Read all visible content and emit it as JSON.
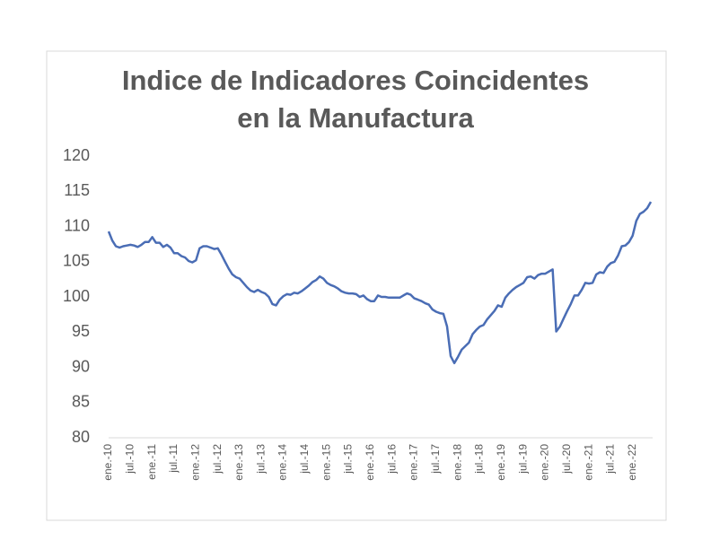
{
  "chart_data": {
    "type": "line",
    "title": [
      "Indice de Indicadores Coincidentes",
      "en la Manufactura"
    ],
    "categories": [
      "ene.-10",
      null,
      null,
      null,
      null,
      null,
      "jul.-10",
      null,
      null,
      null,
      null,
      null,
      "ene.-11",
      null,
      null,
      null,
      null,
      null,
      "jul.-11",
      null,
      null,
      null,
      null,
      null,
      "ene.-12",
      null,
      null,
      null,
      null,
      null,
      "jul.-12",
      null,
      null,
      null,
      null,
      null,
      "ene.-13",
      null,
      null,
      null,
      null,
      null,
      "jul.-13",
      null,
      null,
      null,
      null,
      null,
      "ene.-14",
      null,
      null,
      null,
      null,
      null,
      "jul.-14",
      null,
      null,
      null,
      null,
      null,
      "ene.-15",
      null,
      null,
      null,
      null,
      null,
      "jul.-15",
      null,
      null,
      null,
      null,
      null,
      "ene.-16",
      null,
      null,
      null,
      null,
      null,
      "jul.-16",
      null,
      null,
      null,
      null,
      null,
      "ene.-17",
      null,
      null,
      null,
      null,
      null,
      "jul.-17",
      null,
      null,
      null,
      null,
      null,
      "ene.-18",
      null,
      null,
      null,
      null,
      null,
      "jul.-18",
      null,
      null,
      null,
      null,
      null,
      "ene.-19",
      null,
      null,
      null,
      null,
      null,
      "jul.-19",
      null,
      null,
      null,
      null,
      null,
      "ene.-20",
      null,
      null,
      null,
      null,
      null,
      "jul.-20",
      null,
      null,
      null,
      null,
      null,
      "ene.-21",
      null,
      null,
      null,
      null,
      null,
      "jul.-21",
      null,
      null,
      null,
      null,
      null,
      "ene.-22",
      null,
      null,
      null,
      null,
      null
    ],
    "series": [
      {
        "color": "#4a6db5",
        "values": [
          109.3,
          108.0,
          107.2,
          107.0,
          107.2,
          107.3,
          107.4,
          107.3,
          107.1,
          107.4,
          107.8,
          107.8,
          108.5,
          107.7,
          107.7,
          107.1,
          107.4,
          107.0,
          106.2,
          106.2,
          105.8,
          105.6,
          105.1,
          104.9,
          105.2,
          106.9,
          107.2,
          107.2,
          107.0,
          106.8,
          106.9,
          106.0,
          105.0,
          104.0,
          103.2,
          102.8,
          102.6,
          102.0,
          101.4,
          100.9,
          100.7,
          101.0,
          100.7,
          100.5,
          100.0,
          99.0,
          98.8,
          99.6,
          100.1,
          100.4,
          100.3,
          100.6,
          100.5,
          100.8,
          101.2,
          101.6,
          102.1,
          102.4,
          102.9,
          102.6,
          102.0,
          101.7,
          101.5,
          101.2,
          100.8,
          100.6,
          100.5,
          100.5,
          100.4,
          100.0,
          100.2,
          99.7,
          99.4,
          99.4,
          100.2,
          100.0,
          100.0,
          99.9,
          99.9,
          99.9,
          99.9,
          100.2,
          100.5,
          100.3,
          99.8,
          99.6,
          99.4,
          99.1,
          98.9,
          98.2,
          97.9,
          97.7,
          97.6,
          95.8,
          91.6,
          90.6,
          91.5,
          92.5,
          93.0,
          93.5,
          94.7,
          95.3,
          95.8,
          96.0,
          96.8,
          97.4,
          98.0,
          98.8,
          98.6,
          99.9,
          100.5,
          101.0,
          101.4,
          101.7,
          102.0,
          102.8,
          102.9,
          102.6,
          103.1,
          103.3,
          103.3,
          103.6,
          103.9,
          95.1,
          95.8,
          96.9,
          98.0,
          99.0,
          100.2,
          100.2,
          101.0,
          102.0,
          101.9,
          102.0,
          103.2,
          103.5,
          103.4,
          104.3,
          104.8,
          105.0,
          105.9,
          107.2,
          107.3,
          107.8,
          108.7,
          110.8,
          111.8,
          112.1,
          112.6,
          113.5
        ]
      }
    ],
    "ylim": [
      80,
      120
    ],
    "yticks": [
      80,
      85,
      90,
      95,
      100,
      105,
      110,
      115,
      120
    ],
    "grid": false
  }
}
